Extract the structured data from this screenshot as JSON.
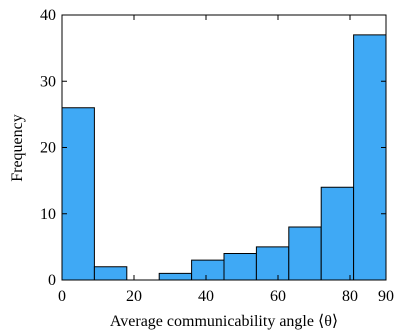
{
  "chart_data": {
    "type": "bar",
    "title": "",
    "xlabel": "Average communicability angle ⟨θ⟩",
    "ylabel": "Frequency",
    "xlim": [
      0,
      90
    ],
    "ylim": [
      0,
      40
    ],
    "x_ticks": [
      0,
      20,
      40,
      60,
      80,
      90
    ],
    "y_ticks": [
      0,
      10,
      20,
      30,
      40
    ],
    "bins": [
      {
        "start": 0,
        "end": 9,
        "value": 26
      },
      {
        "start": 9,
        "end": 18,
        "value": 2
      },
      {
        "start": 18,
        "end": 27,
        "value": 0
      },
      {
        "start": 27,
        "end": 36,
        "value": 1
      },
      {
        "start": 36,
        "end": 45,
        "value": 3
      },
      {
        "start": 45,
        "end": 54,
        "value": 4
      },
      {
        "start": 54,
        "end": 63,
        "value": 5
      },
      {
        "start": 63,
        "end": 72,
        "value": 8
      },
      {
        "start": 72,
        "end": 81,
        "value": 14
      },
      {
        "start": 81,
        "end": 90,
        "value": 37
      }
    ],
    "bar_color": "#3fa9f5",
    "grid": false,
    "legend": "none"
  }
}
